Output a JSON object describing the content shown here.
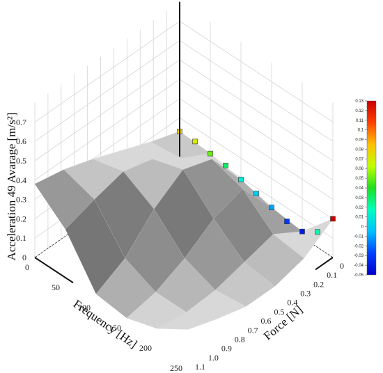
{
  "chart_data": {
    "type": "surface3d",
    "xlabel": "Frequency [Hz]",
    "ylabel": "Force [N]",
    "zlabel": "Acceleration 49 Avarage [m/s²]",
    "xlim": [
      0,
      250
    ],
    "ylim": [
      0,
      1.1
    ],
    "zlim": [
      0,
      0.8
    ],
    "xticks": [
      0,
      50,
      100,
      150,
      200,
      250
    ],
    "yticks": [
      0,
      0.1,
      0.2,
      0.3,
      0.4,
      0.5,
      0.6,
      0.7,
      0.8,
      0.9,
      {
        "value": 1,
        "label": "1.0"
      },
      1.1
    ],
    "zticks": [
      0,
      0.1,
      0.2,
      0.3,
      0.4,
      0.5,
      0.6,
      0.7
    ],
    "surface": {
      "x": [
        0,
        50,
        100,
        150,
        200,
        250
      ],
      "y": [
        0,
        0.22,
        0.44,
        0.66,
        0.88,
        1.1
      ],
      "z": [
        [
          0.13,
          0.18,
          0.24,
          0.3,
          0.35,
          0.38
        ],
        [
          0.12,
          0.2,
          0.3,
          0.34,
          0.3,
          0.25
        ],
        [
          0.09,
          0.3,
          0.35,
          0.25,
          0.1,
          0.02
        ],
        [
          0.05,
          0.25,
          0.2,
          0.1,
          0.03,
          0.0
        ],
        [
          0.03,
          0.12,
          0.08,
          0.04,
          0.03,
          0.05
        ],
        [
          0.2,
          0.1,
          0.06,
          0.06,
          0.1,
          0.15
        ]
      ],
      "color": "#d8d8d8"
    },
    "markers": {
      "x": [
        0,
        25,
        50,
        75,
        100,
        125,
        150,
        175,
        200,
        225,
        250
      ],
      "y": [
        0,
        0,
        0,
        0,
        0,
        0,
        0,
        0,
        0,
        0,
        0
      ],
      "z": [
        0.13,
        0.13,
        0.12,
        0.11,
        0.09,
        0.07,
        0.05,
        0.03,
        0.03,
        0.08,
        0.2
      ],
      "c": [
        0.08,
        0.07,
        0.05,
        0.03,
        0.01,
        0,
        -0.01,
        -0.03,
        -0.04,
        0.02,
        0.13
      ]
    },
    "clim": [
      -0.05,
      0.13
    ],
    "cticks": [
      -0.05,
      -0.04,
      -0.03,
      -0.02,
      -0.01,
      0,
      0.01,
      0.02,
      0.03,
      0.04,
      0.05,
      0.06,
      0.07,
      0.08,
      0.09,
      0.1,
      0.11,
      0.12,
      0.13
    ],
    "colormap": [
      "#0000c8",
      "#0040ff",
      "#00c0ff",
      "#00ffc0",
      "#20e020",
      "#c0ff00",
      "#ffc000",
      "#ff4000",
      "#c80000"
    ],
    "grid": true
  }
}
